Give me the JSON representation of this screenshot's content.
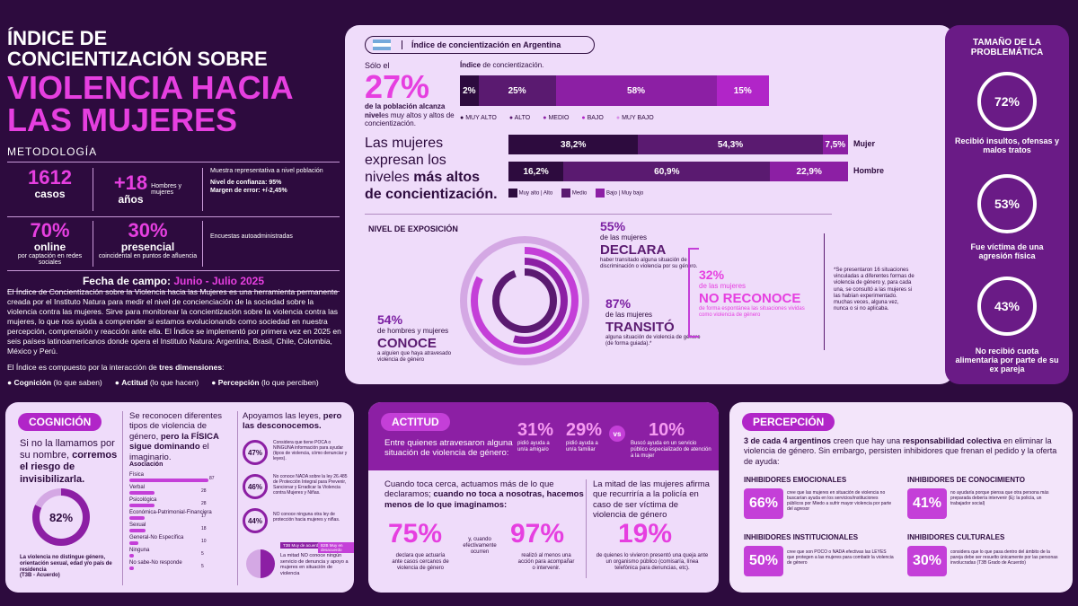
{
  "header": {
    "title1": "ÍNDICE DE",
    "title2": "CONCIENTIZACIÓN SOBRE",
    "title3": "VIOLENCIA HACIA",
    "title4": "LAS MUJERES"
  },
  "metodologia": {
    "label": "METODOLOGÍA",
    "casos_num": "1612",
    "casos_lbl": "casos",
    "anios_num": "+18",
    "anios_lbl": "años",
    "anios_note": "Hombres y mujeres",
    "muestra": "Muestra representativa a nivel población",
    "confianza": "Nivel de confianza: 95%",
    "margen": "Margen de error: +/-2,45%",
    "online_num": "70%",
    "online_lbl": "online",
    "online_note": "por captación en redes sociales",
    "pres_num": "30%",
    "pres_lbl": "presencial",
    "pres_note": "coincidental en puntos de afluencia",
    "encuestas": "Encuestas autoadministradas",
    "fecha_lbl": "Fecha de campo:",
    "fecha_val": "Junio - Julio 2025"
  },
  "intro": {
    "p1": "El Índice de Concientización sobre la Violencia hacia las Mujeres es una herramienta permanente creada por el Instituto Natura para medir el nivel de concienciación de la sociedad sobre la violencia contra las mujeres. Sirve para monitorear la concientización sobre la violencia contra las mujeres, lo que nos ayuda a comprender si estamos evolucionando como sociedad en nuestra percepción, comprensión y reacción ante ella. El Índice se implementó por primera vez en 2025 en seis países latinoamericanos donde opera el Instituto Natura: Argentina, Brasil, Chile, Colombia, México y Perú.",
    "p2a": "El Índice es compuesto por la interacción de ",
    "p2b": "tres dimensiones",
    "p2c": ":",
    "d1a": "Cognición",
    "d1b": " (lo que saben)",
    "d2a": "Actitud",
    "d2b": " (lo que hacen)",
    "d3a": "Percepción",
    "d3b": " (lo que perciben)"
  },
  "indice": {
    "tab": "Índice de concientización en Argentina",
    "solo": "Sólo el",
    "pct": "27%",
    "desc1": "de la población alcanza",
    "desc2": "nivel",
    "desc3": "es muy altos y altos de concientización.",
    "bar_title_a": "Índice",
    "bar_title_b": " de concientización.",
    "segs": [
      "2%",
      "25%",
      "58%",
      "15%"
    ],
    "legend": [
      "MUY ALTO",
      "ALTO",
      "MEDIO",
      "BAJO",
      "MUY BAJO"
    ]
  },
  "gender": {
    "t1": "Las mujeres",
    "t2": "expresan los",
    "t3a": "niveles ",
    "t3b": "más altos",
    "t4": "de concientización.",
    "mujer": [
      "38,2%",
      "54,3%",
      "7,5%"
    ],
    "hombre": [
      "16,2%",
      "60,9%",
      "22,9%"
    ],
    "mujer_lbl": "Mujer",
    "hombre_lbl": "Hombre",
    "legend": [
      "Muy alto | Alto",
      "Medio",
      "Bajo | Muy bajo"
    ]
  },
  "exposicion": {
    "label": "NIVEL DE EXPOSICIÓN",
    "p55": "55%",
    "l55": "de las mujeres",
    "w55": "DECLARA",
    "d55": "haber transitado alguna situación de discriminación o violencia por su género.",
    "p87": "87%",
    "l87": "de las mujeres",
    "w87": "TRANSITÓ",
    "d87": "alguna situación de violencia de género (de forma guiada).*",
    "p32": "32%",
    "l32": "de las mujeres",
    "w32": "NO RECONOCE",
    "d32": "de forma espontánea las situaciones vividas como violencia de género",
    "p54": "54%",
    "l54": "de hombres y mujeres",
    "w54": "CONOCE",
    "d54": "a alguien que haya atravesado violencia de género",
    "note": "*Se presentaron 16 situaciones vinculadas a diferentes formas de violencia de género y, para cada una, se consultó a las mujeres si las habían experimentado. muchas veces, alguna vez, nunca o si no aplicaba."
  },
  "problematica": {
    "title": "TAMAÑO DE LA PROBLEMÁTICA",
    "v1": "72%",
    "d1": "Recibió insultos, ofensas y malos tratos",
    "v2": "53%",
    "d2": "Fue víctima de una agresión física",
    "v3": "43%",
    "d3": "No recibió cuota alimentaria por parte de su ex pareja"
  },
  "cognicion": {
    "pill": "COGNICIÓN",
    "t1": "Si no la llamamos por su nombre,",
    "t2": "corremos el riesgo de invisibilizarla.",
    "pct": "82%",
    "d1": "La violencia no distingue género, orientación sexual, edad y/o país de residencia",
    "d2": "(T3B - Acuerdo)",
    "mid1": "Se reconocen diferentes tipos de violencia de género, ",
    "mid2": "pero la FÍSICA sigue dominando",
    "mid3": " el imaginario.",
    "asoc": "Asociación",
    "items": [
      {
        "l": "Física",
        "v": "87"
      },
      {
        "l": "Verbal",
        "v": "28"
      },
      {
        "l": "Psicológica",
        "v": "28"
      },
      {
        "l": "Económica-Patrimonial-Financiera",
        "v": "17"
      },
      {
        "l": "Sexual",
        "v": "18"
      },
      {
        "l": "General-No Específica",
        "v": "10"
      },
      {
        "l": "Ninguna",
        "v": "5"
      },
      {
        "l": "No sabe-No responde",
        "v": "5"
      }
    ],
    "r1": "Apoyamos las leyes, ",
    "r2": "pero las desconocemos.",
    "c1": "47%",
    "c1d": "Considera que tiene POCA o NINGUNA información para ayudar (tipos de violencia, cómo denunciar y leyes).",
    "c2": "46%",
    "c2d": "No conoce NADA sobre la ley 26.485 de Protección Integral para Prevenir, Sancionar y Erradicar la Violencia contra Mujeres y Niñas.",
    "c3": "44%",
    "c3d": "NO conoce ninguna otra ley de protección hacia mujeres y niñas.",
    "tag1": "T3B Muy de acuerdo",
    "tag2": "B2B Muy en desacuerdo",
    "fin1": "La mitad NO conoce ningún servicio de denuncia y apoyo a mujeres en situación de violencia"
  },
  "actitud": {
    "pill": "ACTITUD",
    "q": "Entre quienes atravesaron alguna situación de violencia de género:",
    "v1": "31%",
    "d1": "pidió ayuda a un/a amiga/o",
    "v2": "29%",
    "d2": "pidió ayuda a un/a familiar",
    "vs": "vs",
    "v3": "10%",
    "d3": "Buscó ayuda en un servicio público especializado de atención a la mujer",
    "l1": "Cuando toca cerca, actuamos más de lo que declaramos; ",
    "l2": "cuando no toca a nosotras, hacemos menos de lo que imaginamos:",
    "b1": "75%",
    "b1d": "declara que actuaría ante casos cercanos de violencia de género",
    "mid": "y, cuando efectivamente ocurren",
    "b2": "97%",
    "b2d": "realizó al menos una acción para acompañar o intervenir.",
    "r1": "La mitad de las mujeres afirma que recurriría a la policía en caso de ser víctima de violencia de género",
    "b3": "19%",
    "b3d": "de quienes lo vivieron presentó una queja ante un organismo público (comisaría, línea telefónica para denuncias, etc)."
  },
  "percepcion": {
    "pill": "PERCEPCIÓN",
    "t1a": "3 de cada 4 argentinos",
    "t1b": " creen que hay una ",
    "t1c": "responsabilidad colectiva",
    "t1d": " en eliminar la violencia de género. Sin embargo, persisten inhibidores que frenan el pedido y la oferta de ayuda:",
    "h1": "INHIBIDORES EMOCIONALES",
    "v1": "66%",
    "d1": "cree que las mujeres en situación de violencia no buscarían ayuda en los servicios/instituciones públicos por Miedo a sufrir mayor violencia por parte del agresor",
    "h2": "INHIBIDORES DE CONOCIMIENTO",
    "v2": "41%",
    "d2": "no ayudaría porque piensa que otra persona más preparada debería intervenir (Ej: la policía, un trabajador social)",
    "h3": "INHIBIDORES INSTITUCIONALES",
    "v3": "50%",
    "d3": "cree que son POCO o NADA efectivas las LEYES que protegen a las mujeres para combatir la violencia de género",
    "h4": "INHIBIDORES CULTURALES",
    "v4": "30%",
    "d4": "considera que lo que pasa dentro del ámbito de la pareja debe ser resuelto únicamente por las personas involucradas (T3B Grado de Acuerdo)"
  }
}
